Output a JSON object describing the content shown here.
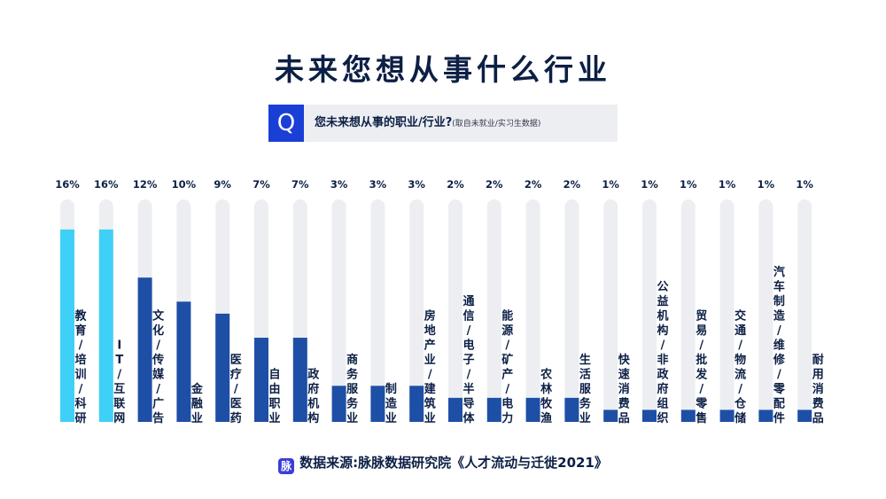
{
  "title": "未来您想从事什么行业",
  "question": {
    "icon": "Q",
    "text": "您未来想从事的职业/行业?",
    "note": "(取自未就业/实习生数据)"
  },
  "source": {
    "logo_icon": "脉",
    "text": "数据来源:脉脉数据研究院《人才流动与迁徙2021》"
  },
  "colors": {
    "highlight": "#3fd0f7",
    "bar": "#1e4fa6",
    "track": "#eceef2",
    "text": "#0c1f45"
  },
  "chart_data": {
    "type": "bar",
    "orientation": "vertical",
    "value_unit": "%",
    "categories": [
      "教育/培训/科研",
      "IT/互联网",
      "文化/传媒/广告",
      "金融业",
      "医疗/医药",
      "自由职业",
      "政府机构",
      "商务服务业",
      "制造业",
      "房地产业/建筑业",
      "通信/电子/半导体",
      "能源/矿产/电力",
      "农林牧渔",
      "生活服务业",
      "快速消费品",
      "公益机构/非政府组织",
      "贸易/批发/零售",
      "交通/物流/仓储",
      "汽车/制造/维修/零配件",
      "耐用消费品"
    ],
    "values": [
      16,
      16,
      12,
      10,
      9,
      7,
      7,
      3,
      3,
      3,
      2,
      2,
      2,
      2,
      1,
      1,
      1,
      1,
      1,
      1
    ],
    "labels": [
      "16%",
      "16%",
      "12%",
      "10%",
      "9%",
      "7%",
      "7%",
      "3%",
      "3%",
      "3%",
      "2%",
      "2%",
      "2%",
      "2%",
      "1%",
      "1%",
      "1%",
      "1%",
      "1%",
      "1%"
    ],
    "vertical_labels": [
      "教育/培训/科研",
      "IT/互联网",
      "文化/传媒/广告",
      "金融业",
      "医疗/医药",
      "自由职业",
      "政府机构",
      "商务服务业",
      "制造业",
      "房地产业/建筑业",
      "通信/电子/半导体",
      "能源/矿产/电力",
      "农林牧渔",
      "生活服务业",
      "快速消费品",
      "公益机构/非政府组织",
      "贸易/批发/零售",
      "交通/物流/仓储",
      "汽车制造/维修/零配件",
      "耐用消费品"
    ],
    "highlighted": [
      0,
      1
    ],
    "ylim": [
      0,
      18.5
    ],
    "grid": false,
    "legend": "none"
  }
}
